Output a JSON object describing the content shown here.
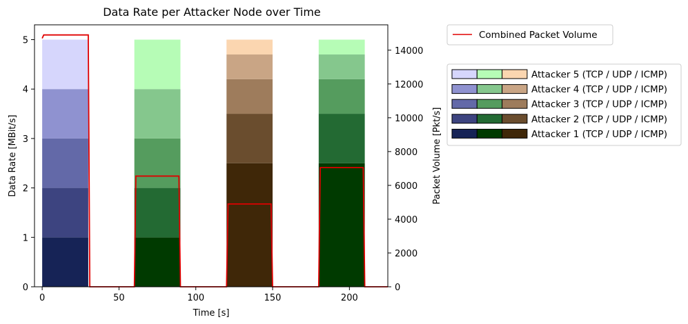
{
  "chart_data": {
    "type": "area",
    "title": "Data Rate per Attacker Node over Time",
    "xlabel": "Time [s]",
    "ylabel_left": "Data Rate [MBit/s]",
    "ylabel_right": "Packet Volume [Pkt/s]",
    "xlim": [
      -5,
      225
    ],
    "ylim_left": [
      0,
      5.3
    ],
    "ylim_right": [
      0,
      15500
    ],
    "x_ticks": [
      0,
      50,
      100,
      150,
      200
    ],
    "y_ticks_left": [
      0,
      1,
      2,
      3,
      4,
      5
    ],
    "y_ticks_right": [
      0,
      2000,
      4000,
      6000,
      8000,
      10000,
      12000,
      14000
    ],
    "grid": false,
    "phases": [
      {
        "protocol": "TCP",
        "start": 0,
        "end": 30,
        "layers": [
          1,
          1,
          1,
          1,
          1
        ],
        "colors": [
          "#162356",
          "#3d4480",
          "#6369a8",
          "#8f92d0",
          "#d6d6fc"
        ]
      },
      {
        "protocol": "UDP",
        "start": 60,
        "end": 90,
        "layers": [
          1,
          1,
          1,
          1,
          1
        ],
        "colors": [
          "#003a00",
          "#236a33",
          "#559c5e",
          "#85c78d",
          "#b6fcb6"
        ]
      },
      {
        "protocol": "ICMP",
        "start": 120,
        "end": 150,
        "layers": [
          2.5,
          1,
          0.7,
          0.5,
          0.3
        ],
        "colors": [
          "#3f2708",
          "#6a4d2e",
          "#9e7c5c",
          "#c9a585",
          "#fbd6b0"
        ]
      },
      {
        "protocol": "UDP",
        "start": 180,
        "end": 210,
        "layers": [
          2.5,
          1,
          0.7,
          0.5,
          0.3
        ],
        "colors": [
          "#003a00",
          "#236a33",
          "#559c5e",
          "#85c78d",
          "#b6fcb6"
        ]
      }
    ],
    "series": [
      {
        "name": "Combined Packet Volume",
        "axis": "right",
        "color": "#e00000",
        "x": [
          0,
          1,
          30,
          31,
          59,
          60,
          61,
          89,
          90,
          119,
          120,
          121,
          149,
          150,
          179,
          180,
          181,
          209,
          210,
          225
        ],
        "y": [
          14700,
          14900,
          14900,
          0,
          0,
          0,
          6550,
          6550,
          0,
          0,
          0,
          4900,
          4900,
          0,
          0,
          0,
          7050,
          7050,
          0,
          0
        ]
      }
    ],
    "legend": {
      "placement": "outside-right",
      "line_entry": "Combined Packet Volume",
      "attacker_entries": [
        "Attacker 5 (TCP / UDP / ICMP)",
        "Attacker 4 (TCP / UDP / ICMP)",
        "Attacker 3 (TCP / UDP / ICMP)",
        "Attacker 2 (TCP / UDP / ICMP)",
        "Attacker 1 (TCP / UDP / ICMP)"
      ],
      "attacker_colors": [
        [
          "#d6d6fc",
          "#b6fcb6",
          "#fbd6b0"
        ],
        [
          "#8f92d0",
          "#85c78d",
          "#c9a585"
        ],
        [
          "#6369a8",
          "#559c5e",
          "#9e7c5c"
        ],
        [
          "#3d4480",
          "#236a33",
          "#6a4d2e"
        ],
        [
          "#162356",
          "#003a00",
          "#3f2708"
        ]
      ]
    }
  }
}
